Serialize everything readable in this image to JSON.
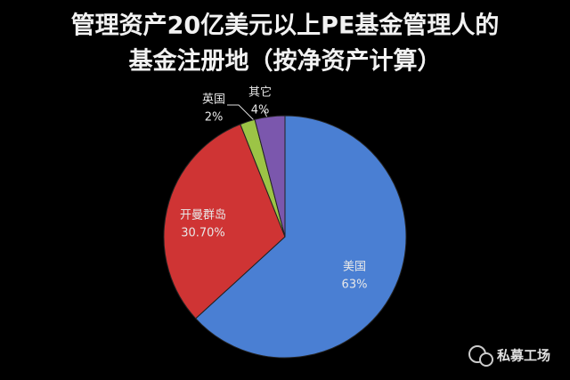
{
  "chart_data": {
    "type": "pie",
    "title": [
      "管理资产20亿美元以上PE基金管理人的",
      "基金注册地（按净资产计算）"
    ],
    "categories": [
      "美国",
      "开曼群岛",
      "英国",
      "其它"
    ],
    "values": [
      63,
      30.7,
      2,
      4
    ],
    "value_labels": [
      "63%",
      "30.70%",
      "2%",
      "4%"
    ],
    "colors": [
      "#4a7fd3",
      "#cf3434",
      "#9cc446",
      "#7b57ad"
    ]
  },
  "watermark": "私募工场"
}
